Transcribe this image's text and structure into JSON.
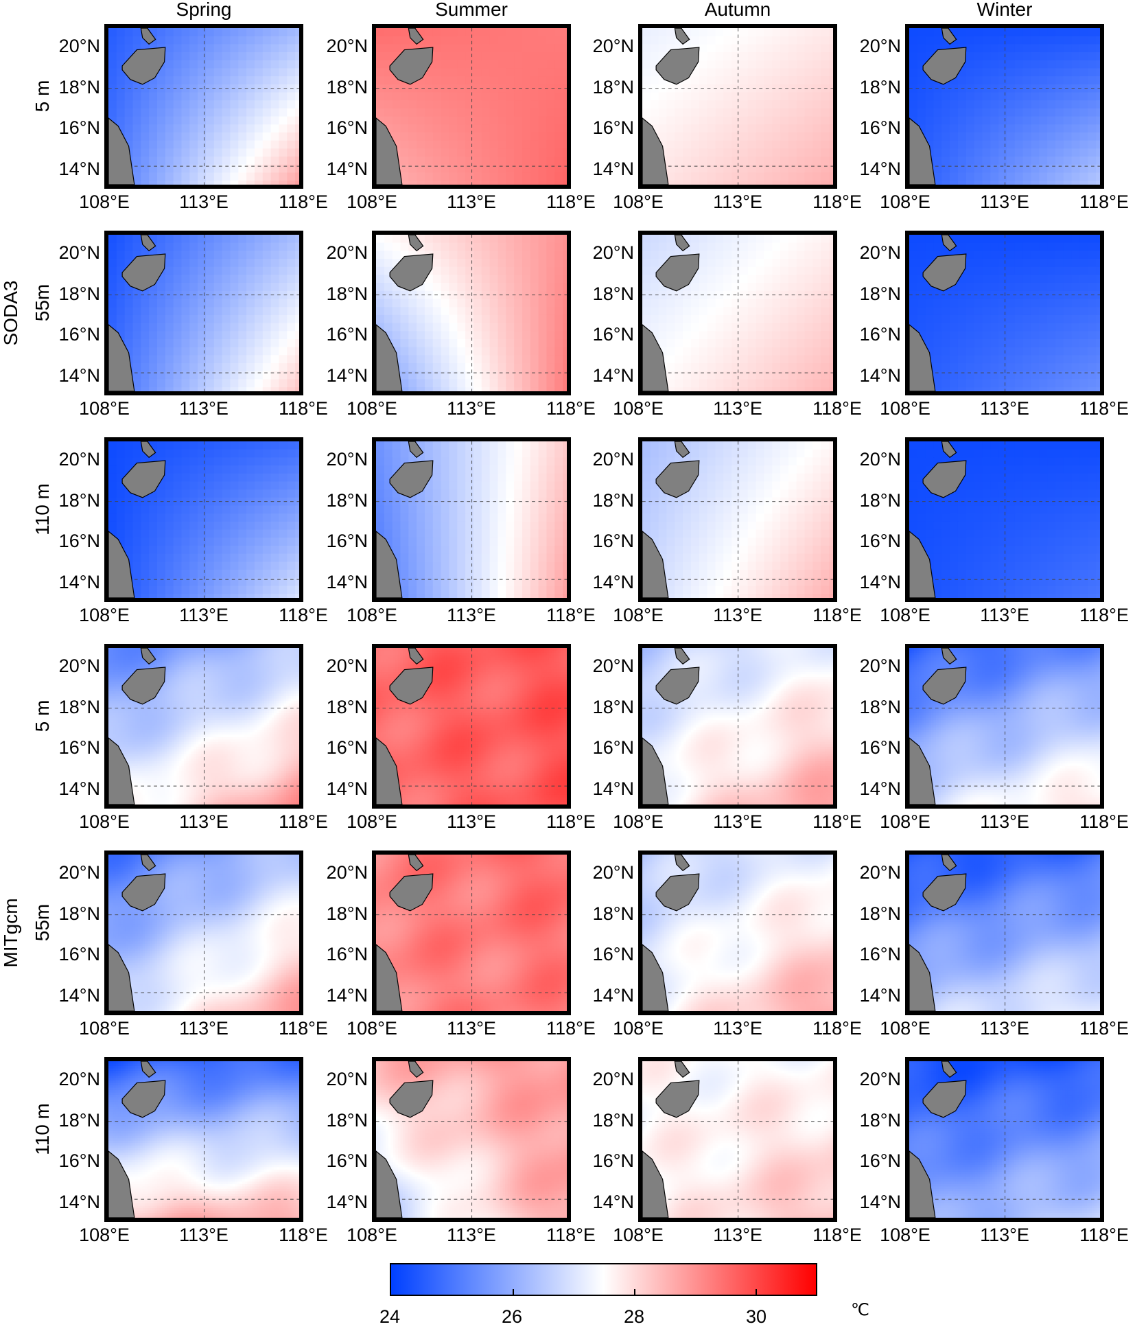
{
  "chart_data": {
    "type": "heatmap",
    "title": "",
    "columns": [
      "Spring",
      "Summer",
      "Autumn",
      "Winter"
    ],
    "row_groups": [
      {
        "name": "SODA3",
        "depths": [
          "5 m",
          "55m",
          "110 m"
        ],
        "style": "coarse"
      },
      {
        "name": "MITgcm",
        "depths": [
          "5 m",
          "55m",
          "110 m"
        ],
        "style": "smooth"
      }
    ],
    "x_ticks": [
      "108°E",
      "113°E",
      "118°E"
    ],
    "y_ticks": [
      "20°N",
      "18°N",
      "16°N",
      "14°N"
    ],
    "xlim": [
      108,
      118
    ],
    "ylim": [
      13.1,
      21.1
    ],
    "grid": "dashed at 113°E, 18°N, 14°N",
    "colorbar": {
      "range": [
        24,
        31
      ],
      "ticks": [
        "24",
        "26",
        "28",
        "30"
      ],
      "unit": "℃",
      "colors": {
        "low": "#0040ff",
        "mid": "#ffffff",
        "high": "#ff0000"
      }
    },
    "land_color": "#808080",
    "approx_fields_corners_nw_ne_sw_se": [
      [
        [
          24.5,
          26.2,
          25.0,
          28.8
        ],
        [
          29.5,
          29.3,
          28.5,
          29.6
        ],
        [
          27.2,
          27.8,
          27.8,
          28.6
        ],
        [
          24.2,
          24.3,
          24.5,
          26.5
        ]
      ],
      [
        [
          24.3,
          26.3,
          24.8,
          28.3
        ],
        [
          27.5,
          29.0,
          25.5,
          29.3
        ],
        [
          26.8,
          27.7,
          27.5,
          28.5
        ],
        [
          24.2,
          24.2,
          24.5,
          25.5
        ]
      ],
      [
        [
          24.2,
          24.8,
          24.3,
          27.0
        ],
        [
          25.5,
          28.2,
          25.0,
          28.8
        ],
        [
          26.3,
          27.6,
          26.8,
          28.6
        ],
        [
          24.2,
          24.2,
          24.3,
          25.0
        ]
      ],
      [
        [
          25.3,
          26.5,
          27.3,
          29.0
        ],
        [
          29.6,
          29.8,
          29.5,
          29.8
        ],
        [
          26.5,
          27.3,
          27.5,
          28.8
        ],
        [
          24.5,
          25.5,
          26.8,
          28.0
        ]
      ],
      [
        [
          25.0,
          26.5,
          26.8,
          28.8
        ],
        [
          29.2,
          29.6,
          29.2,
          29.3
        ],
        [
          26.5,
          27.3,
          27.3,
          28.8
        ],
        [
          24.3,
          25.0,
          26.5,
          27.3
        ]
      ],
      [
        [
          24.5,
          25.0,
          28.5,
          28.5
        ],
        [
          28.5,
          29.0,
          26.5,
          28.8
        ],
        [
          27.5,
          27.5,
          27.5,
          28.5
        ],
        [
          24.3,
          24.5,
          25.8,
          26.8
        ]
      ]
    ]
  }
}
